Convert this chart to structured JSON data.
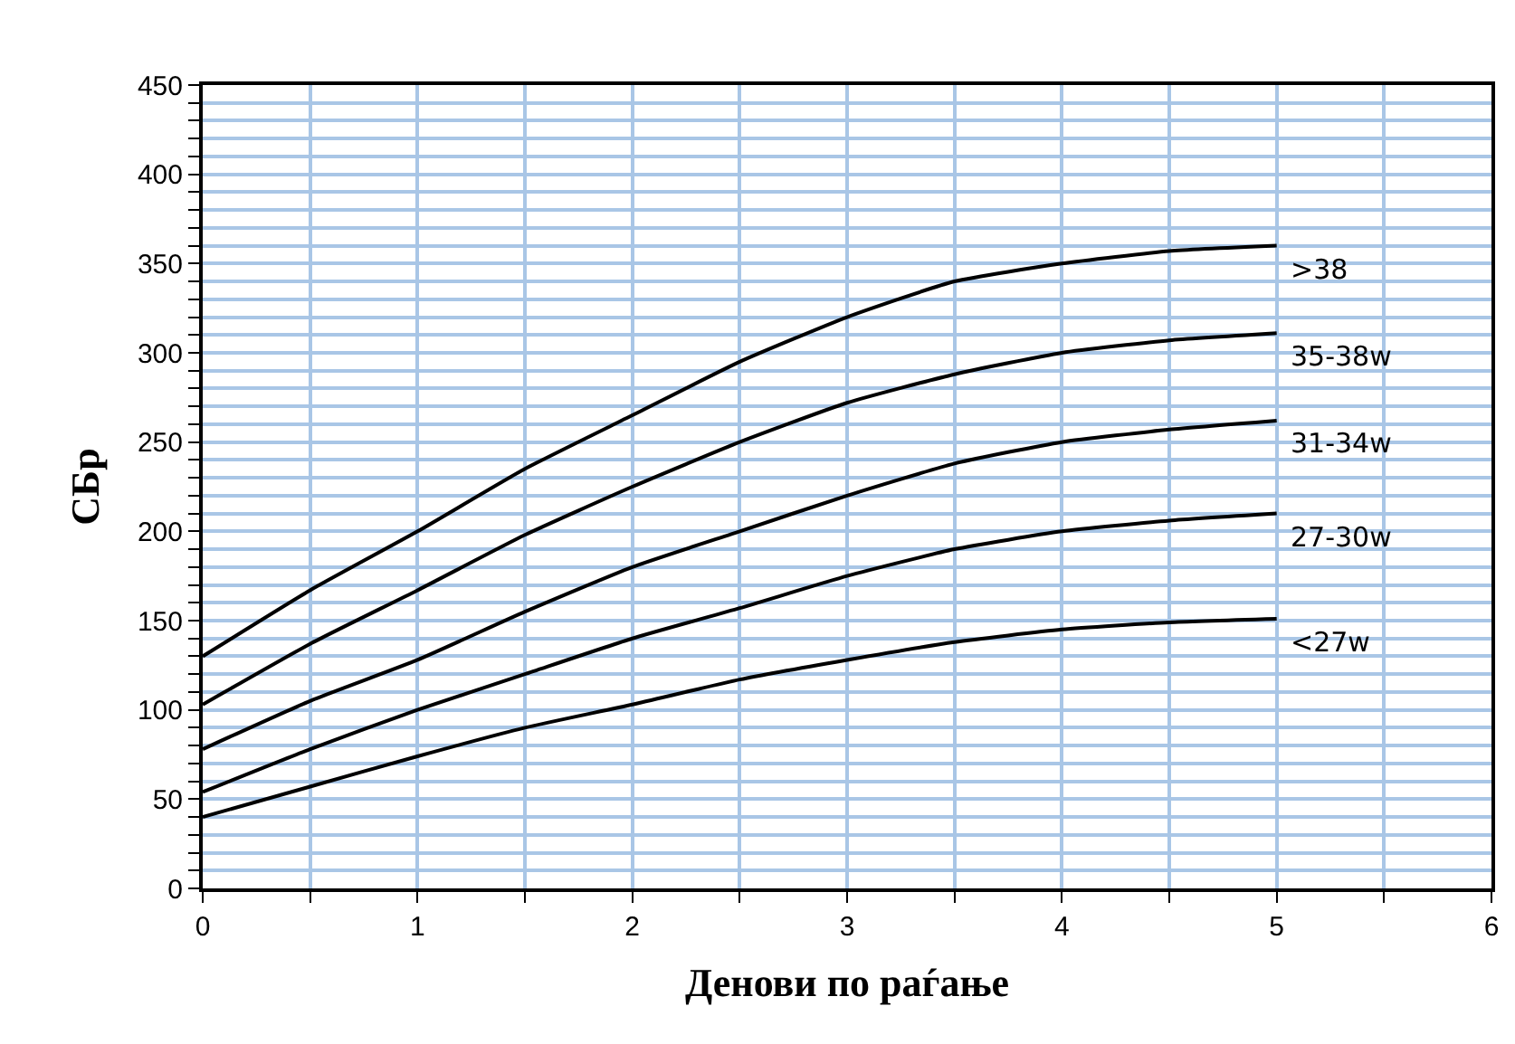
{
  "chart_data": {
    "type": "line",
    "xlabel": "Денови по раѓање",
    "ylabel": "СБр",
    "x": [
      0,
      0.5,
      1,
      1.5,
      2,
      2.5,
      3,
      3.5,
      4,
      4.5,
      5
    ],
    "series": [
      {
        "name": ">38",
        "color": "#000000",
        "values": [
          130,
          167,
          200,
          235,
          265,
          295,
          320,
          340,
          350,
          357,
          360
        ]
      },
      {
        "name": "35-38w",
        "color": "#000000",
        "values": [
          103,
          137,
          167,
          198,
          225,
          250,
          272,
          288,
          300,
          307,
          311
        ]
      },
      {
        "name": "31-34w",
        "color": "#000000",
        "values": [
          78,
          105,
          128,
          155,
          180,
          200,
          220,
          238,
          250,
          257,
          262
        ]
      },
      {
        "name": "27-30w",
        "color": "#000000",
        "values": [
          54,
          78,
          100,
          120,
          140,
          157,
          175,
          190,
          200,
          206,
          210
        ]
      },
      {
        "name": "<27w",
        "color": "#000000",
        "values": [
          40,
          57,
          74,
          90,
          103,
          117,
          128,
          138,
          145,
          149,
          151
        ]
      }
    ],
    "xlim": [
      0,
      6
    ],
    "xticks": [
      0,
      {
        "value": 0.5,
        "label": null
      },
      1,
      {
        "value": 1.5,
        "label": null
      },
      2,
      {
        "value": 2.5,
        "label": null
      },
      3,
      {
        "value": 3.5,
        "label": null
      },
      4,
      {
        "value": 4.5,
        "label": null
      },
      5,
      {
        "value": 5.5,
        "label": null
      },
      6
    ],
    "ylim": [
      0,
      450
    ],
    "yticks": [
      0,
      {
        "value": 10,
        "label": null
      },
      {
        "value": 20,
        "label": null
      },
      {
        "value": 30,
        "label": null
      },
      {
        "value": 40,
        "label": null
      },
      50,
      {
        "value": 60,
        "label": null
      },
      {
        "value": 70,
        "label": null
      },
      {
        "value": 80,
        "label": null
      },
      {
        "value": 90,
        "label": null
      },
      100,
      {
        "value": 110,
        "label": null
      },
      {
        "value": 120,
        "label": null
      },
      {
        "value": 130,
        "label": null
      },
      {
        "value": 140,
        "label": null
      },
      150,
      {
        "value": 160,
        "label": null
      },
      {
        "value": 170,
        "label": null
      },
      {
        "value": 180,
        "label": null
      },
      {
        "value": 190,
        "label": null
      },
      200,
      {
        "value": 210,
        "label": null
      },
      {
        "value": 220,
        "label": null
      },
      {
        "value": 230,
        "label": null
      },
      {
        "value": 240,
        "label": null
      },
      250,
      {
        "value": 260,
        "label": null
      },
      {
        "value": 270,
        "label": null
      },
      {
        "value": 280,
        "label": null
      },
      {
        "value": 290,
        "label": null
      },
      300,
      {
        "value": 310,
        "label": null
      },
      {
        "value": 320,
        "label": null
      },
      {
        "value": 330,
        "label": null
      },
      {
        "value": 340,
        "label": null
      },
      350,
      {
        "value": 360,
        "label": null
      },
      {
        "value": 370,
        "label": null
      },
      {
        "value": 380,
        "label": null
      },
      {
        "value": 390,
        "label": null
      },
      400,
      {
        "value": 410,
        "label": null
      },
      {
        "value": 420,
        "label": null
      },
      {
        "value": 430,
        "label": null
      },
      {
        "value": 440,
        "label": null
      },
      450
    ],
    "grid": true,
    "legend": false,
    "marker": "none",
    "line_style": "solid"
  }
}
